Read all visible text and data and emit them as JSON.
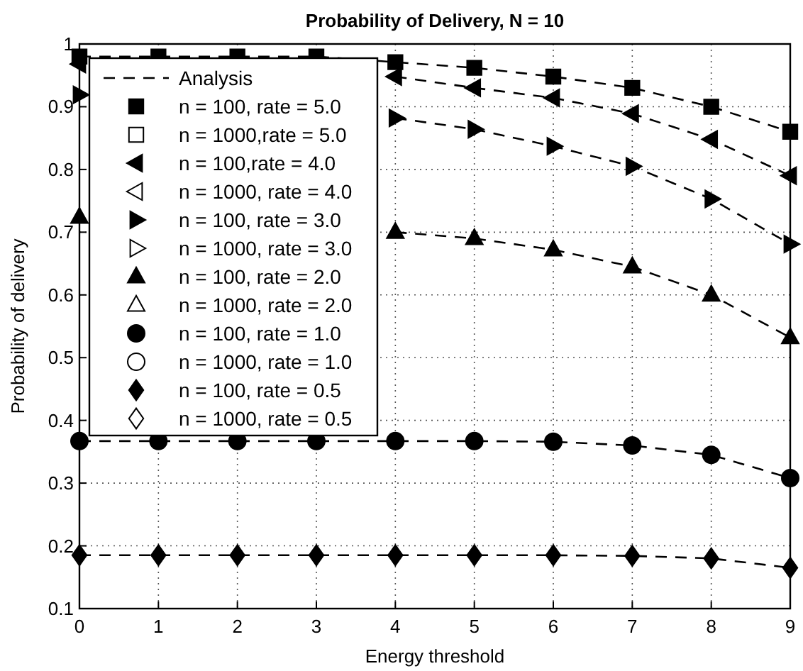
{
  "chart_data": {
    "type": "line",
    "title": "Probability of Delivery, N = 10",
    "xlabel": "Energy threshold",
    "ylabel": "Probability of delivery",
    "x": [
      0,
      1,
      2,
      3,
      4,
      5,
      6,
      7,
      8,
      9
    ],
    "xlim": [
      0,
      9
    ],
    "xticks": [
      0,
      1,
      2,
      3,
      4,
      5,
      6,
      7,
      8,
      9
    ],
    "ylim": [
      0.1,
      1
    ],
    "yticks": [
      0.1,
      0.2,
      0.3,
      0.4,
      0.5,
      0.6,
      0.7,
      0.8,
      0.9,
      1
    ],
    "grid": true,
    "legend": "top left",
    "series": [
      {
        "name": "Analysis",
        "line_style": "dashed",
        "marker": "none",
        "color": "#000000",
        "values": [
          0.98,
          0.98,
          0.98,
          0.98,
          0.971,
          0.962,
          0.948,
          0.93,
          0.9,
          0.86
        ]
      },
      {
        "line_style": "dashed",
        "marker": "none",
        "color": "#000000",
        "values": [
          null,
          null,
          null,
          null,
          0.948,
          0.93,
          0.914,
          0.889,
          0.848,
          0.79
        ]
      },
      {
        "line_style": "dashed",
        "marker": "none",
        "color": "#000000",
        "values": [
          null,
          null,
          null,
          null,
          0.882,
          0.864,
          0.837,
          0.805,
          0.753,
          0.681
        ]
      },
      {
        "line_style": "dashed",
        "marker": "none",
        "color": "#000000",
        "values": [
          null,
          null,
          null,
          null,
          0.7,
          0.69,
          0.672,
          0.645,
          0.6,
          0.532
        ]
      },
      {
        "line_style": "dashed",
        "marker": "none",
        "color": "#000000",
        "values": [
          0.367,
          0.367,
          0.367,
          0.367,
          0.367,
          0.367,
          0.366,
          0.36,
          0.345,
          0.308
        ]
      },
      {
        "line_style": "dashed",
        "marker": "none",
        "color": "#000000",
        "values": [
          0.185,
          0.185,
          0.185,
          0.185,
          0.185,
          0.185,
          0.185,
          0.184,
          0.18,
          0.165
        ]
      },
      {
        "name": "n = 100, rate = 5.0",
        "type": "scatter",
        "marker": "square",
        "color": "#000000",
        "values": [
          0.98,
          0.98,
          0.98,
          0.98,
          0.971,
          0.962,
          0.948,
          0.93,
          0.9,
          0.86
        ]
      },
      {
        "name": "n = 1000,rate = 5.0",
        "type": "scatter",
        "marker": "square",
        "color": "#ffffff",
        "values": [
          null,
          null,
          null,
          null,
          null,
          null,
          null,
          null,
          null,
          null
        ]
      },
      {
        "name": "n = 100,rate = 4.0",
        "type": "scatter",
        "marker": "triangle-left",
        "color": "#000000",
        "values": [
          0.968,
          null,
          null,
          null,
          0.948,
          0.93,
          0.914,
          0.889,
          0.848,
          0.79
        ]
      },
      {
        "name": "n = 1000, rate = 4.0",
        "type": "scatter",
        "marker": "triangle-left",
        "color": "#ffffff",
        "values": [
          null,
          null,
          null,
          null,
          null,
          null,
          null,
          null,
          null,
          null
        ]
      },
      {
        "name": "n = 100, rate = 3.0",
        "type": "scatter",
        "marker": "triangle-right",
        "color": "#000000",
        "values": [
          0.919,
          null,
          null,
          null,
          0.882,
          0.864,
          0.837,
          0.805,
          0.753,
          0.681
        ]
      },
      {
        "name": "n = 1000, rate = 3.0",
        "type": "scatter",
        "marker": "triangle-right",
        "color": "#ffffff",
        "values": [
          null,
          null,
          null,
          null,
          null,
          null,
          null,
          null,
          null,
          null
        ]
      },
      {
        "name": "n = 100, rate = 2.0",
        "type": "scatter",
        "marker": "triangle",
        "color": "#000000",
        "values": [
          0.724,
          null,
          null,
          null,
          0.7,
          0.69,
          0.672,
          0.645,
          0.6,
          0.532
        ]
      },
      {
        "name": "n = 1000, rate = 2.0",
        "type": "scatter",
        "marker": "triangle",
        "color": "#ffffff",
        "values": [
          null,
          null,
          null,
          null,
          null,
          null,
          null,
          null,
          null,
          null
        ]
      },
      {
        "name": "n = 100, rate = 1.0",
        "type": "scatter",
        "marker": "circle",
        "color": "#000000",
        "values": [
          0.367,
          0.367,
          0.367,
          0.367,
          0.367,
          0.367,
          0.366,
          0.36,
          0.345,
          0.308
        ]
      },
      {
        "name": "n = 1000, rate = 1.0",
        "type": "scatter",
        "marker": "circle",
        "color": "#ffffff",
        "values": [
          null,
          null,
          null,
          null,
          null,
          null,
          null,
          null,
          null,
          null
        ]
      },
      {
        "name": "n = 100, rate = 0.5",
        "type": "scatter",
        "marker": "diamond",
        "color": "#000000",
        "values": [
          0.185,
          0.185,
          0.185,
          0.185,
          0.185,
          0.185,
          0.185,
          0.184,
          0.18,
          0.165
        ]
      },
      {
        "name": "n = 1000, rate = 0.5",
        "type": "scatter",
        "marker": "diamond",
        "color": "#ffffff",
        "values": [
          null,
          null,
          null,
          null,
          null,
          null,
          null,
          null,
          null,
          null
        ]
      }
    ]
  }
}
